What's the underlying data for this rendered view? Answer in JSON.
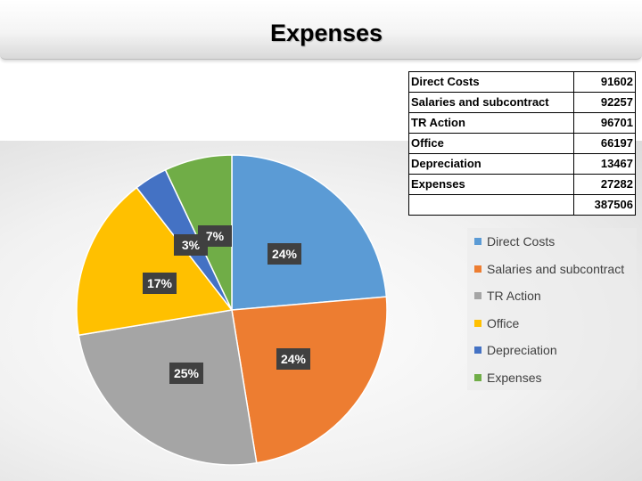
{
  "slide": {
    "title": "Expenses"
  },
  "table": {
    "rows": [
      {
        "label": "Direct Costs",
        "value": "91602"
      },
      {
        "label": "Salaries and subcontract",
        "value": "92257"
      },
      {
        "label": "TR Action",
        "value": "96701"
      },
      {
        "label": "Office",
        "value": "66197"
      },
      {
        "label": "Depreciation",
        "value": "13467"
      },
      {
        "label": "Expenses",
        "value": "27282"
      }
    ],
    "total_label": "",
    "total_value": "387506"
  },
  "chart_data": {
    "type": "pie",
    "title": "",
    "categories": [
      "Direct Costs",
      "Salaries and subcontract",
      "TR Action",
      "Office",
      "Depreciation",
      "Expenses"
    ],
    "values": [
      91602,
      92257,
      96701,
      66197,
      13467,
      27282
    ],
    "percent_labels": [
      "24%",
      "24%",
      "25%",
      "17%",
      "3%",
      "7%"
    ],
    "colors": [
      "#5b9bd5",
      "#ed7d31",
      "#a5a5a5",
      "#ffc000",
      "#4472c4",
      "#70ad47"
    ],
    "start_angle": "12 o'clock",
    "direction": "clockwise",
    "legend_position": "right",
    "legend": [
      {
        "label": "Direct Costs",
        "color": "#5b9bd5"
      },
      {
        "label": "Salaries and subcontract",
        "color": "#ed7d31"
      },
      {
        "label": "TR Action",
        "color": "#a5a5a5"
      },
      {
        "label": "Office",
        "color": "#ffc000"
      },
      {
        "label": "Depreciation",
        "color": "#4472c4"
      },
      {
        "label": "Expenses",
        "color": "#70ad47"
      }
    ]
  }
}
